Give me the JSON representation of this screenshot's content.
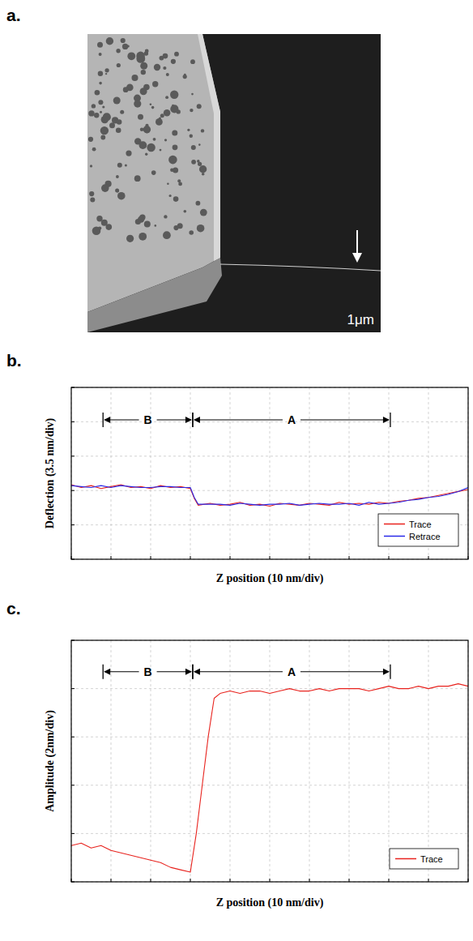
{
  "panel_a": {
    "panel": "a.",
    "scale_bar": "1μm"
  },
  "chart_data": [
    {
      "type": "line",
      "panel": "b.",
      "x_label": "Z position (10 nm/div)",
      "y_label": "Deflection (3.5 nm/div)",
      "x": [
        0,
        2.5,
        5,
        7.5,
        10,
        12.5,
        15,
        17.5,
        20,
        22.5,
        25,
        27.5,
        30,
        31,
        32,
        35,
        37.5,
        40,
        42.5,
        45,
        47.5,
        50,
        52.5,
        55,
        57.5,
        60,
        62.5,
        65,
        67.5,
        70,
        72.5,
        75,
        77.5,
        80,
        82.5,
        85,
        87.5,
        90,
        92.5,
        95,
        97.5,
        100
      ],
      "series": [
        {
          "name": "Trace",
          "color": "#e8231e",
          "values": [
            7.6,
            7.3,
            7.5,
            7.2,
            7.4,
            7.6,
            7.3,
            7.4,
            7.2,
            7.5,
            7.3,
            7.4,
            7.2,
            6.2,
            5.5,
            5.7,
            5.5,
            5.6,
            5.8,
            5.5,
            5.6,
            5.4,
            5.7,
            5.6,
            5.5,
            5.7,
            5.6,
            5.5,
            5.8,
            5.6,
            5.7,
            5.6,
            5.8,
            5.7,
            5.9,
            6.0,
            6.2,
            6.3,
            6.5,
            6.7,
            6.9,
            7.1
          ]
        },
        {
          "name": "Retrace",
          "color": "#2a2ae8",
          "values": [
            7.5,
            7.4,
            7.3,
            7.5,
            7.3,
            7.5,
            7.4,
            7.3,
            7.3,
            7.4,
            7.4,
            7.3,
            7.3,
            6.3,
            5.6,
            5.6,
            5.6,
            5.5,
            5.7,
            5.6,
            5.5,
            5.6,
            5.6,
            5.7,
            5.5,
            5.6,
            5.7,
            5.6,
            5.6,
            5.7,
            5.5,
            5.8,
            5.6,
            5.7,
            5.8,
            6.0,
            6.1,
            6.3,
            6.4,
            6.6,
            6.9,
            7.3
          ]
        }
      ],
      "annotations": [
        {
          "text": "B",
          "x": [
            8,
            30.6
          ],
          "y": 14.2
        },
        {
          "text": "A",
          "x": [
            30.6,
            80.4
          ],
          "y": 14.2
        }
      ],
      "xlim": [
        0,
        100
      ],
      "xticks": [
        0,
        10,
        20,
        30,
        40,
        50,
        60,
        70,
        80,
        90,
        100
      ],
      "ylim": [
        0,
        17.5
      ],
      "yticks": [
        0,
        3.5,
        7,
        10.5,
        14,
        17.5
      ],
      "grid": true,
      "tick_labels": false,
      "legend": "lower right"
    },
    {
      "type": "line",
      "panel": "c.",
      "x_label": "Z position (10 nm/div)",
      "y_label": "Amplitude (2nm/div)",
      "x": [
        0,
        2.5,
        5,
        7.5,
        10,
        12.5,
        15,
        17.5,
        20,
        22.5,
        25,
        27.5,
        30,
        31.5,
        33,
        34.5,
        36,
        37.5,
        40,
        42.5,
        45,
        47.5,
        50,
        52.5,
        55,
        57.5,
        60,
        62.5,
        65,
        67.5,
        70,
        72.5,
        75,
        77.5,
        80,
        82.5,
        85,
        87.5,
        90,
        92.5,
        95,
        97.5,
        100
      ],
      "series": [
        {
          "name": "Trace",
          "color": "#e8231e",
          "values": [
            1.5,
            1.6,
            1.4,
            1.5,
            1.3,
            1.2,
            1.1,
            1.0,
            0.9,
            0.8,
            0.6,
            0.5,
            0.4,
            2.0,
            4.0,
            6.0,
            7.6,
            7.8,
            7.9,
            7.8,
            7.9,
            7.9,
            7.8,
            7.9,
            8.0,
            7.9,
            7.9,
            8.0,
            7.9,
            8.0,
            8.0,
            8.0,
            7.9,
            8.0,
            8.1,
            8.0,
            8.0,
            8.1,
            8.0,
            8.1,
            8.1,
            8.2,
            8.1
          ]
        }
      ],
      "annotations": [
        {
          "text": "B",
          "x": [
            8,
            30.6
          ],
          "y": 8.7
        },
        {
          "text": "A",
          "x": [
            30.6,
            80.4
          ],
          "y": 8.7
        }
      ],
      "xlim": [
        0,
        100
      ],
      "xticks": [
        0,
        10,
        20,
        30,
        40,
        50,
        60,
        70,
        80,
        90,
        100
      ],
      "ylim": [
        0,
        10
      ],
      "yticks": [
        0,
        2,
        4,
        6,
        8,
        10
      ],
      "grid": true,
      "tick_labels": false,
      "legend": "lower right"
    }
  ]
}
